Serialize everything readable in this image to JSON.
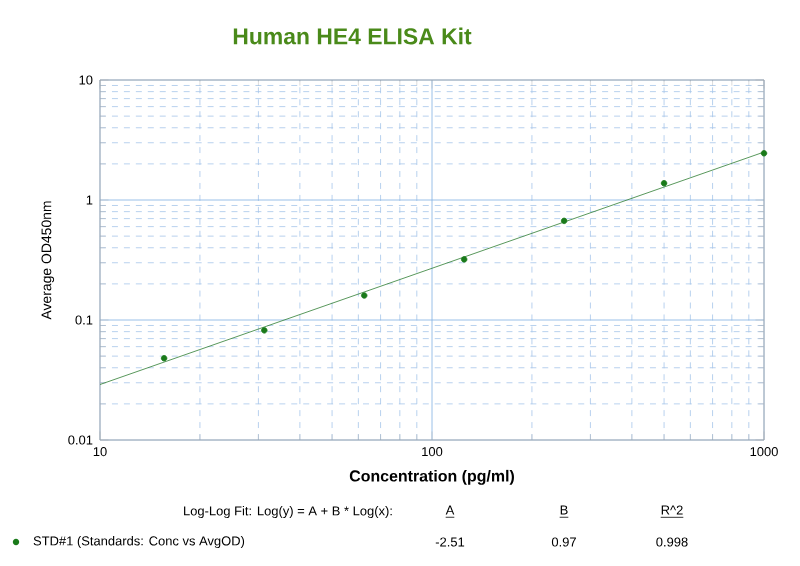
{
  "chart_data": {
    "type": "scatter",
    "title": "Human HE4 ELISA Kit",
    "xlabel": "Concentration (pg/ml)",
    "ylabel": "Average OD450nm",
    "log": "xy",
    "xlim": [
      10,
      1000
    ],
    "ylim": [
      0.01,
      10
    ],
    "xticks": [
      10,
      {
        "value": 20,
        "label": null
      },
      {
        "value": 30,
        "label": null
      },
      {
        "value": 40,
        "label": null
      },
      {
        "value": 50,
        "label": null
      },
      {
        "value": 60,
        "label": null
      },
      {
        "value": 70,
        "label": null
      },
      {
        "value": 80,
        "label": null
      },
      {
        "value": 90,
        "label": null
      },
      100,
      {
        "value": 200,
        "label": null
      },
      {
        "value": 300,
        "label": null
      },
      {
        "value": 400,
        "label": null
      },
      {
        "value": 500,
        "label": null
      },
      {
        "value": 600,
        "label": null
      },
      {
        "value": 700,
        "label": null
      },
      {
        "value": 800,
        "label": null
      },
      {
        "value": 900,
        "label": null
      },
      1000
    ],
    "yticks": [
      0.01,
      {
        "value": 0.02,
        "label": null
      },
      {
        "value": 0.03,
        "label": null
      },
      {
        "value": 0.04,
        "label": null
      },
      {
        "value": 0.05,
        "label": null
      },
      {
        "value": 0.06,
        "label": null
      },
      {
        "value": 0.07,
        "label": null
      },
      {
        "value": 0.08,
        "label": null
      },
      {
        "value": 0.09,
        "label": null
      },
      0.1,
      {
        "value": 0.2,
        "label": null
      },
      {
        "value": 0.3,
        "label": null
      },
      {
        "value": 0.4,
        "label": null
      },
      {
        "value": 0.5,
        "label": null
      },
      {
        "value": 0.6,
        "label": null
      },
      {
        "value": 0.7,
        "label": null
      },
      {
        "value": 0.8,
        "label": null
      },
      {
        "value": 0.9,
        "label": null
      },
      1,
      {
        "value": 2,
        "label": null
      },
      {
        "value": 3,
        "label": null
      },
      {
        "value": 4,
        "label": null
      },
      {
        "value": 5,
        "label": null
      },
      {
        "value": 6,
        "label": null
      },
      {
        "value": 7,
        "label": null
      },
      {
        "value": 8,
        "label": null
      },
      {
        "value": 9,
        "label": null
      },
      10
    ],
    "grid": true,
    "legend": "bottom",
    "series": [
      {
        "name": "STD#1 (Standards: Conc vs AvgOD)",
        "marker": "circle",
        "color": "#1a7a1a",
        "x": [
          15.6,
          31.25,
          62.5,
          125,
          250,
          500,
          1000
        ],
        "values": [
          0.048,
          0.082,
          0.16,
          0.32,
          0.67,
          1.38,
          2.45
        ]
      },
      {
        "type": "line",
        "marker": "none",
        "color": "#2e7d32",
        "x": [
          10,
          1000
        ],
        "values": [
          0.029,
          2.51
        ]
      }
    ],
    "annotations": [
      "Log-Log Fit: Log(y) = A + B * Log(x):",
      "A",
      "B",
      "R^2",
      "-2.51",
      "0.97",
      "0.998"
    ]
  }
}
